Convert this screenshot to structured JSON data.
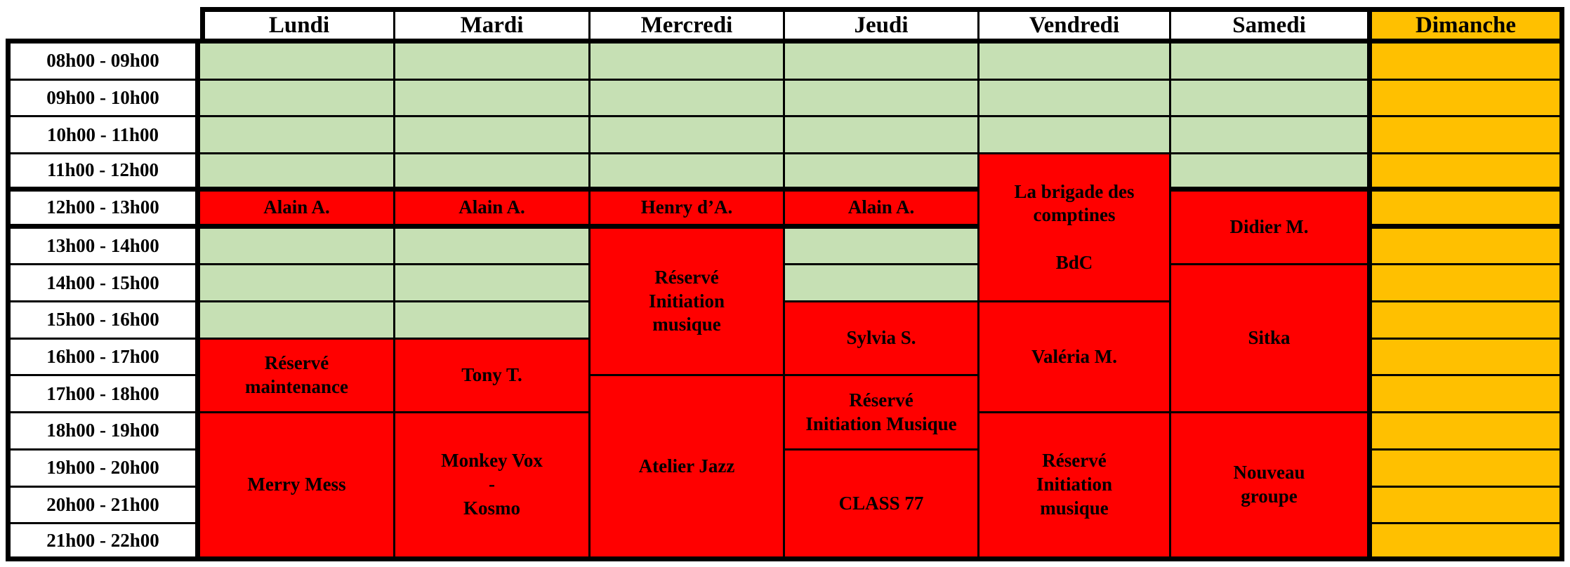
{
  "colors": {
    "available": "#C6E0B4",
    "booked": "#FF0000",
    "closed": "#FFC000",
    "header_background": "#FFFFFF",
    "grid_line": "#000000",
    "text": "#000000"
  },
  "days": [
    "Lundi",
    "Mardi",
    "Mercredi",
    "Jeudi",
    "Vendredi",
    "Samedi",
    "Dimanche"
  ],
  "time_slots": [
    "08h00 - 09h00",
    "09h00 - 10h00",
    "10h00 - 11h00",
    "11h00 - 12h00",
    "12h00 - 13h00",
    "13h00 - 14h00",
    "14h00 - 15h00",
    "15h00 - 16h00",
    "16h00 - 17h00",
    "17h00 - 18h00",
    "18h00 - 19h00",
    "19h00 - 20h00",
    "20h00 - 21h00",
    "21h00 - 22h00"
  ],
  "schedule": {
    "columns": [
      {
        "day": "Lundi",
        "cells": [
          {
            "row": 1,
            "span": 1,
            "status": "available",
            "label": ""
          },
          {
            "row": 2,
            "span": 1,
            "status": "available",
            "label": ""
          },
          {
            "row": 3,
            "span": 1,
            "status": "available",
            "label": ""
          },
          {
            "row": 4,
            "span": 1,
            "status": "available",
            "label": ""
          },
          {
            "row": 5,
            "span": 1,
            "status": "booked",
            "label": "Alain A."
          },
          {
            "row": 6,
            "span": 1,
            "status": "available",
            "label": ""
          },
          {
            "row": 7,
            "span": 1,
            "status": "available",
            "label": ""
          },
          {
            "row": 8,
            "span": 1,
            "status": "available",
            "label": ""
          },
          {
            "row": 9,
            "span": 2,
            "status": "booked",
            "label": "Réservé\nmaintenance"
          },
          {
            "row": 11,
            "span": 4,
            "status": "booked",
            "label": "Merry Mess"
          }
        ]
      },
      {
        "day": "Mardi",
        "cells": [
          {
            "row": 1,
            "span": 1,
            "status": "available",
            "label": ""
          },
          {
            "row": 2,
            "span": 1,
            "status": "available",
            "label": ""
          },
          {
            "row": 3,
            "span": 1,
            "status": "available",
            "label": ""
          },
          {
            "row": 4,
            "span": 1,
            "status": "available",
            "label": ""
          },
          {
            "row": 5,
            "span": 1,
            "status": "booked",
            "label": "Alain A."
          },
          {
            "row": 6,
            "span": 1,
            "status": "available",
            "label": ""
          },
          {
            "row": 7,
            "span": 1,
            "status": "available",
            "label": ""
          },
          {
            "row": 8,
            "span": 1,
            "status": "available",
            "label": ""
          },
          {
            "row": 9,
            "span": 2,
            "status": "booked",
            "label": "Tony T."
          },
          {
            "row": 11,
            "span": 4,
            "status": "booked",
            "label": "Monkey Vox\n-\nKosmo"
          }
        ]
      },
      {
        "day": "Mercredi",
        "cells": [
          {
            "row": 1,
            "span": 1,
            "status": "available",
            "label": ""
          },
          {
            "row": 2,
            "span": 1,
            "status": "available",
            "label": ""
          },
          {
            "row": 3,
            "span": 1,
            "status": "available",
            "label": ""
          },
          {
            "row": 4,
            "span": 1,
            "status": "available",
            "label": ""
          },
          {
            "row": 5,
            "span": 1,
            "status": "booked",
            "label": "Henry d’A."
          },
          {
            "row": 6,
            "span": 4,
            "status": "booked",
            "label": "Réservé\nInitiation\nmusique"
          },
          {
            "row": 10,
            "span": 5,
            "status": "booked",
            "label": "Atelier Jazz"
          }
        ]
      },
      {
        "day": "Jeudi",
        "cells": [
          {
            "row": 1,
            "span": 1,
            "status": "available",
            "label": ""
          },
          {
            "row": 2,
            "span": 1,
            "status": "available",
            "label": ""
          },
          {
            "row": 3,
            "span": 1,
            "status": "available",
            "label": ""
          },
          {
            "row": 4,
            "span": 1,
            "status": "available",
            "label": ""
          },
          {
            "row": 5,
            "span": 1,
            "status": "booked",
            "label": "Alain A."
          },
          {
            "row": 6,
            "span": 1,
            "status": "available",
            "label": ""
          },
          {
            "row": 7,
            "span": 1,
            "status": "available",
            "label": ""
          },
          {
            "row": 8,
            "span": 2,
            "status": "booked",
            "label": "Sylvia S."
          },
          {
            "row": 10,
            "span": 2,
            "status": "booked",
            "label": "Réservé\nInitiation Musique"
          },
          {
            "row": 12,
            "span": 3,
            "status": "booked",
            "label": "CLASS 77"
          }
        ]
      },
      {
        "day": "Vendredi",
        "cells": [
          {
            "row": 1,
            "span": 1,
            "status": "available",
            "label": ""
          },
          {
            "row": 2,
            "span": 1,
            "status": "available",
            "label": ""
          },
          {
            "row": 3,
            "span": 1,
            "status": "available",
            "label": ""
          },
          {
            "row": 4,
            "span": 4,
            "status": "booked",
            "label": "La brigade des\ncomptines\n\nBdC"
          },
          {
            "row": 8,
            "span": 3,
            "status": "booked",
            "label": "Valéria M."
          },
          {
            "row": 11,
            "span": 4,
            "status": "booked",
            "label": "Réservé\nInitiation\nmusique"
          }
        ]
      },
      {
        "day": "Samedi",
        "cells": [
          {
            "row": 1,
            "span": 1,
            "status": "available",
            "label": ""
          },
          {
            "row": 2,
            "span": 1,
            "status": "available",
            "label": ""
          },
          {
            "row": 3,
            "span": 1,
            "status": "available",
            "label": ""
          },
          {
            "row": 4,
            "span": 1,
            "status": "available",
            "label": ""
          },
          {
            "row": 5,
            "span": 2,
            "status": "booked",
            "label": "Didier M."
          },
          {
            "row": 7,
            "span": 4,
            "status": "booked",
            "label": "Sitka"
          },
          {
            "row": 11,
            "span": 4,
            "status": "booked",
            "label": "Nouveau\ngroupe"
          }
        ]
      },
      {
        "day": "Dimanche",
        "cells": [
          {
            "row": 1,
            "span": 1,
            "status": "closed",
            "label": ""
          },
          {
            "row": 2,
            "span": 1,
            "status": "closed",
            "label": ""
          },
          {
            "row": 3,
            "span": 1,
            "status": "closed",
            "label": ""
          },
          {
            "row": 4,
            "span": 1,
            "status": "closed",
            "label": ""
          },
          {
            "row": 5,
            "span": 1,
            "status": "closed",
            "label": ""
          },
          {
            "row": 6,
            "span": 1,
            "status": "closed",
            "label": ""
          },
          {
            "row": 7,
            "span": 1,
            "status": "closed",
            "label": ""
          },
          {
            "row": 8,
            "span": 1,
            "status": "closed",
            "label": ""
          },
          {
            "row": 9,
            "span": 1,
            "status": "closed",
            "label": ""
          },
          {
            "row": 10,
            "span": 1,
            "status": "closed",
            "label": ""
          },
          {
            "row": 11,
            "span": 1,
            "status": "closed",
            "label": ""
          },
          {
            "row": 12,
            "span": 1,
            "status": "closed",
            "label": ""
          },
          {
            "row": 13,
            "span": 1,
            "status": "closed",
            "label": ""
          },
          {
            "row": 14,
            "span": 1,
            "status": "closed",
            "label": ""
          }
        ]
      }
    ]
  }
}
